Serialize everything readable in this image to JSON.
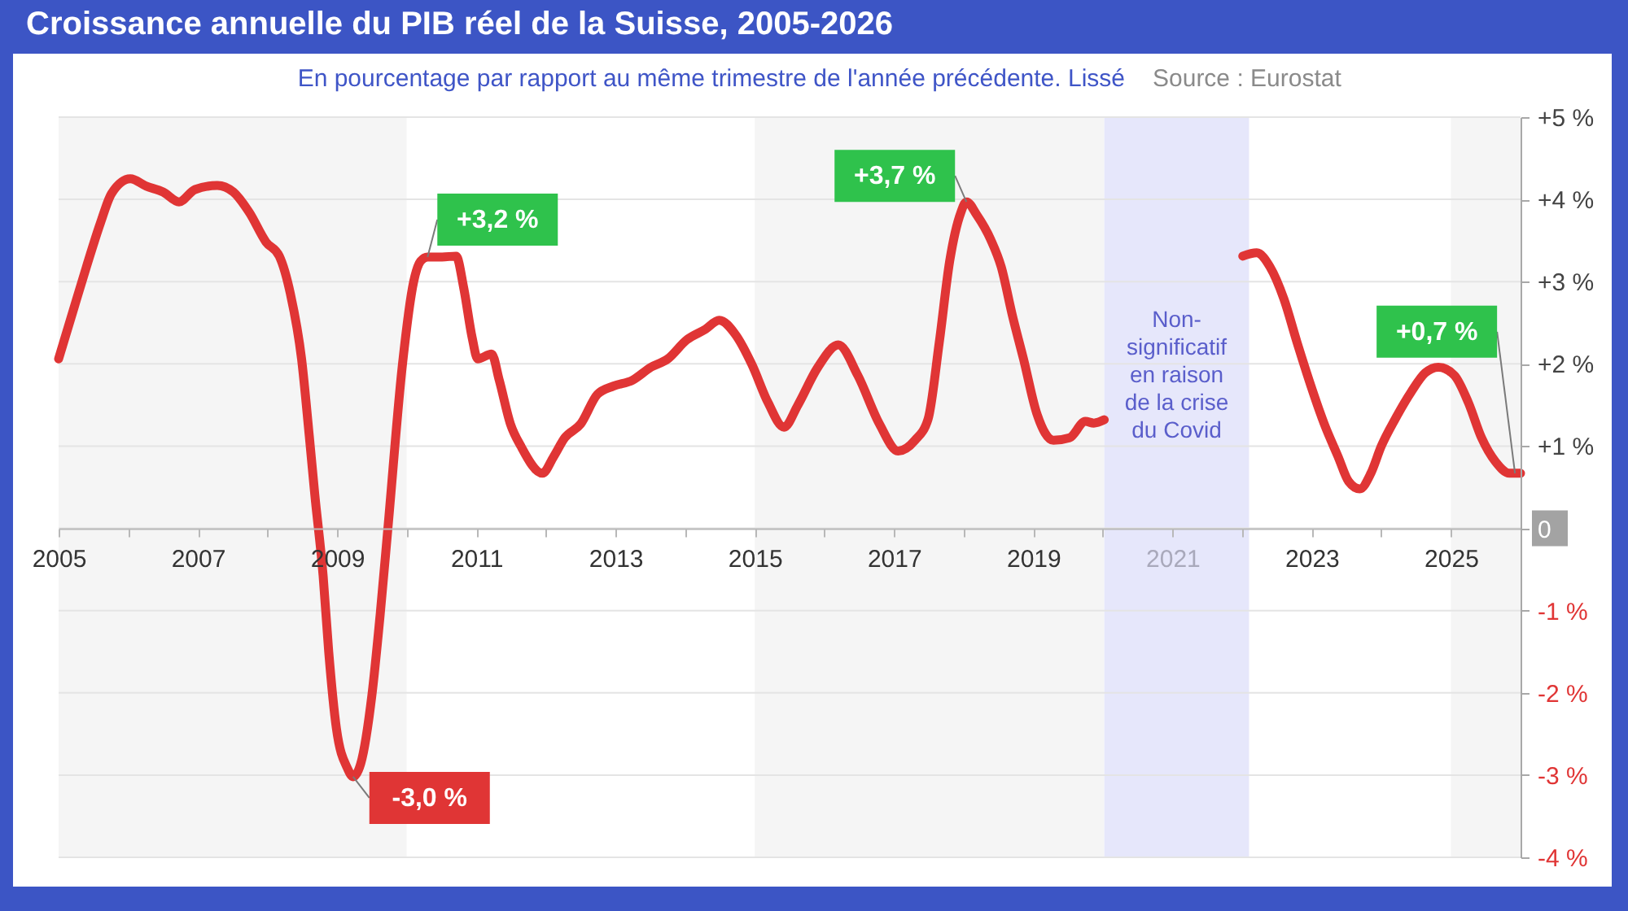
{
  "chart_data": {
    "type": "line",
    "title": "Croissance annuelle du PIB réel de la Suisse, 2005-2026",
    "subtitle": "En pourcentage par rapport au même trimestre de l'année précédente. Lissé",
    "annotations": [
      "Source : Eurostat",
      {
        "text": "-3,0 %",
        "x": 2009.23,
        "y": -3.02
      },
      {
        "text": "+3,2 %",
        "x": 2010.3,
        "y": 3.3
      },
      {
        "text": "+3,7 %",
        "x": 2018.04,
        "y": 3.97
      },
      {
        "text": "+0,7 %",
        "x": 2025.92,
        "y": 0.67
      }
    ],
    "x": [
      2005.0,
      2005.21,
      2005.4,
      2005.6,
      2005.76,
      2006.03,
      2006.26,
      2006.5,
      2006.73,
      2006.96,
      2007.28,
      2007.51,
      2007.74,
      2007.98,
      2008.17,
      2008.33,
      2008.49,
      2008.6,
      2008.68,
      2008.8,
      2008.88,
      2008.99,
      2009.15,
      2009.23,
      2009.34,
      2009.5,
      2009.62,
      2009.73,
      2009.94,
      2010.1,
      2010.2,
      2010.3,
      2010.51,
      2010.71,
      2010.82,
      2010.94,
      2011.02,
      2011.22,
      2011.33,
      2011.49,
      2011.64,
      2011.95,
      2012.11,
      2012.27,
      2012.5,
      2012.74,
      2012.97,
      2013.24,
      2013.51,
      2013.75,
      2014.02,
      2014.29,
      2014.49,
      2014.72,
      2014.96,
      2015.19,
      2015.42,
      2015.62,
      2015.9,
      2016.2,
      2016.48,
      2016.79,
      2017.06,
      2017.3,
      2017.49,
      2017.65,
      2017.8,
      2017.96,
      2018.04,
      2018.19,
      2018.39,
      2018.54,
      2018.7,
      2018.86,
      2019.05,
      2019.29,
      2019.52,
      2019.75,
      2019.87,
      2020.02,
      2021.0,
      2022.01,
      2022.21,
      2022.4,
      2022.6,
      2022.79,
      2022.99,
      2023.18,
      2023.38,
      2023.53,
      2023.69,
      2023.85,
      2024.0,
      2024.2,
      2024.43,
      2024.63,
      2024.82,
      2025.05,
      2025.25,
      2025.44,
      2025.64,
      2025.84,
      2026.0
    ],
    "series": [
      {
        "color": "#e03535",
        "values": [
          2.06,
          2.65,
          3.18,
          3.71,
          4.07,
          4.25,
          4.16,
          4.09,
          3.97,
          4.12,
          4.17,
          4.09,
          3.84,
          3.48,
          3.31,
          2.85,
          2.06,
          1.13,
          0.41,
          -0.58,
          -1.5,
          -2.43,
          -2.92,
          -3.02,
          -2.86,
          -2.03,
          -1.04,
          0.0,
          2.0,
          3.0,
          3.25,
          3.3,
          3.3,
          3.31,
          2.92,
          2.32,
          2.06,
          2.12,
          1.8,
          1.27,
          1.0,
          0.67,
          0.87,
          1.1,
          1.27,
          1.63,
          1.73,
          1.8,
          1.96,
          2.06,
          2.29,
          2.42,
          2.53,
          2.36,
          1.99,
          1.53,
          1.23,
          1.5,
          1.95,
          2.23,
          1.86,
          1.27,
          0.94,
          1.07,
          1.33,
          2.26,
          3.25,
          3.84,
          3.97,
          3.81,
          3.51,
          3.18,
          2.59,
          2.06,
          1.4,
          1.07,
          1.1,
          1.3,
          1.28,
          1.32,
          null,
          3.31,
          3.35,
          3.18,
          2.79,
          2.26,
          1.73,
          1.27,
          0.87,
          0.57,
          0.48,
          0.67,
          1.0,
          1.33,
          1.66,
          1.89,
          1.96,
          1.86,
          1.53,
          1.1,
          0.81,
          0.67,
          0.67
        ]
      }
    ],
    "xlim": [
      2005,
      2026
    ],
    "ylim": [
      -4,
      5
    ],
    "xticks": [
      2005,
      {
        "value": 2006,
        "label": null
      },
      2007,
      {
        "value": 2008,
        "label": null
      },
      2009,
      {
        "value": 2010,
        "label": null
      },
      2011,
      {
        "value": 2012,
        "label": null
      },
      2013,
      {
        "value": 2014,
        "label": null
      },
      2015,
      {
        "value": 2016,
        "label": null
      },
      2017,
      {
        "value": 2018,
        "label": null
      },
      2019,
      {
        "value": 2020,
        "label": null
      },
      2021,
      {
        "value": 2022,
        "label": null
      },
      2023,
      {
        "value": 2024,
        "label": null
      },
      2025,
      {
        "value": 2026,
        "label": null
      }
    ],
    "yticks": [
      {
        "value": -4,
        "label": "-4 %"
      },
      {
        "value": -3,
        "label": "-3 %"
      },
      {
        "value": -2,
        "label": "-2 %"
      },
      {
        "value": -1,
        "label": "-1 %"
      },
      0,
      {
        "value": 1,
        "label": "+1 %"
      },
      {
        "value": 2,
        "label": "+2 %"
      },
      {
        "value": 3,
        "label": "+3 %"
      },
      {
        "value": 4,
        "label": "+4 %"
      },
      {
        "value": 5,
        "label": "+5 %"
      }
    ],
    "grid": "y",
    "line_style": "solid",
    "bands": [
      {
        "axis": "x",
        "from": 2005,
        "to": 2010,
        "color": "#f5f5f5"
      },
      {
        "axis": "x",
        "from": 2015,
        "to": 2020.02,
        "color": "#f5f5f5"
      },
      {
        "axis": "x",
        "from": 2025,
        "to": 2026,
        "color": "#f5f5f5"
      },
      {
        "axis": "x",
        "from": 2020.02,
        "to": 2022.1,
        "color": "#e6e7fb",
        "label": "Non-significatif en raison de la crise du Covid"
      }
    ]
  }
}
